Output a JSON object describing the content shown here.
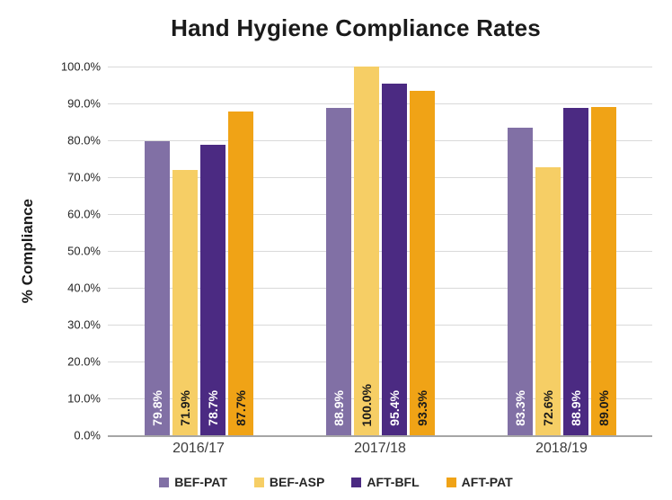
{
  "chart_data": {
    "type": "bar",
    "title": "Hand Hygiene Compliance Rates",
    "xlabel": "",
    "ylabel": "% Compliance",
    "categories": [
      "2016/17",
      "2017/18",
      "2018/19"
    ],
    "series": [
      {
        "name": "BEF-PAT",
        "color": "#8170A5",
        "label_color": "#ffffff",
        "values": [
          79.8,
          88.9,
          83.3
        ],
        "labels": [
          "79.8%",
          "88.9%",
          "83.3%"
        ]
      },
      {
        "name": "BEF-ASP",
        "color": "#F6CE65",
        "label_color": "#1a1a1a",
        "values": [
          71.9,
          100.0,
          72.6
        ],
        "labels": [
          "71.9%",
          "100.0%",
          "72.6%"
        ]
      },
      {
        "name": "AFT-BFL",
        "color": "#4B2A82",
        "label_color": "#ffffff",
        "values": [
          78.7,
          95.4,
          88.9
        ],
        "labels": [
          "78.7%",
          "95.4%",
          "88.9%"
        ]
      },
      {
        "name": "AFT-PAT",
        "color": "#F0A316",
        "label_color": "#1a1a1a",
        "values": [
          87.7,
          93.3,
          89.0
        ],
        "labels": [
          "87.7%",
          "93.3%",
          "89.0%"
        ]
      }
    ],
    "yticks": [
      "100.0%",
      "90.0%",
      "80.0%",
      "70.0%",
      "60.0%",
      "50.0%",
      "40.0%",
      "30.0%",
      "20.0%",
      "10.0%",
      "0.0%"
    ],
    "ylim": [
      0,
      100
    ],
    "grid": true,
    "gridline_color": "#d9d9d9",
    "axis_line_color": "#a6a6a6",
    "legend_position": "bottom"
  }
}
